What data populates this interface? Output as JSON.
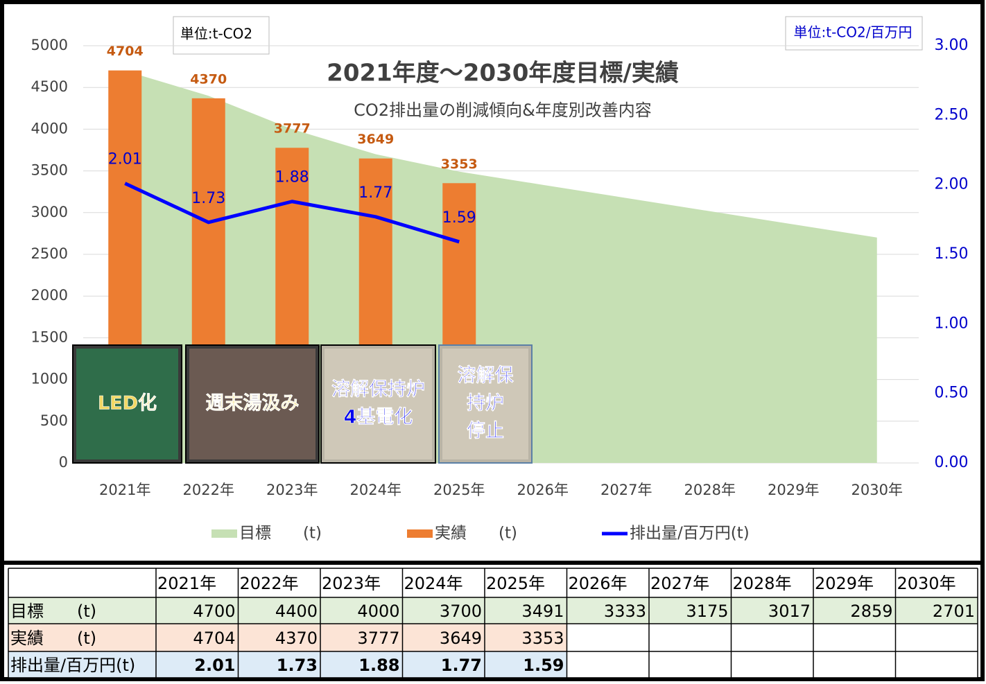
{
  "chart_data": {
    "type": "combo",
    "title": "2021年度～2030年度目標/実績",
    "subtitle": "CO2排出量の削減傾向&年度別改善内容",
    "unit_left": "単位:t-CO2",
    "unit_right": "単位:t-CO2/百万円",
    "categories": [
      "2021年",
      "2022年",
      "2023年",
      "2024年",
      "2025年",
      "2026年",
      "2027年",
      "2028年",
      "2029年",
      "2030年"
    ],
    "series": [
      {
        "name": "目標　　(t)",
        "type": "area",
        "color": "#c6e0b4",
        "values": [
          4700,
          4400,
          4000,
          3700,
          3491,
          3333,
          3175,
          3017,
          2859,
          2701
        ]
      },
      {
        "name": "実績　　(t)",
        "type": "bar",
        "color": "#ed7d31",
        "label_color": "#c55a11",
        "values": [
          4704,
          4370,
          3777,
          3649,
          3353,
          null,
          null,
          null,
          null,
          null
        ]
      },
      {
        "name": "排出量/百万円(t)",
        "type": "line",
        "axis": "y2",
        "color": "#0000ff",
        "label_color": "#0000cc",
        "values": [
          2.01,
          1.73,
          1.88,
          1.77,
          1.59,
          null,
          null,
          null,
          null,
          null
        ]
      }
    ],
    "ylim": [
      0,
      5000
    ],
    "yticks": [
      0,
      500,
      1000,
      1500,
      2000,
      2500,
      3000,
      3500,
      4000,
      4500,
      5000
    ],
    "y2lim": [
      0,
      3
    ],
    "y2ticks": [
      {
        "value": 0,
        "label": "0.00"
      },
      {
        "value": 0.5,
        "label": "0.50"
      },
      {
        "value": 1,
        "label": "1.00"
      },
      {
        "value": 1.5,
        "label": "1.50"
      },
      {
        "value": 2,
        "label": "2.00"
      },
      {
        "value": 2.5,
        "label": "2.50"
      },
      {
        "value": 3,
        "label": "3.00"
      }
    ],
    "grid": true,
    "photo_captions": [
      [
        "LED化"
      ],
      [
        "週末湯汲み"
      ],
      [
        "溶解保持炉",
        "4基電化"
      ],
      [
        "溶解保",
        "持炉",
        "停止"
      ]
    ]
  }
}
